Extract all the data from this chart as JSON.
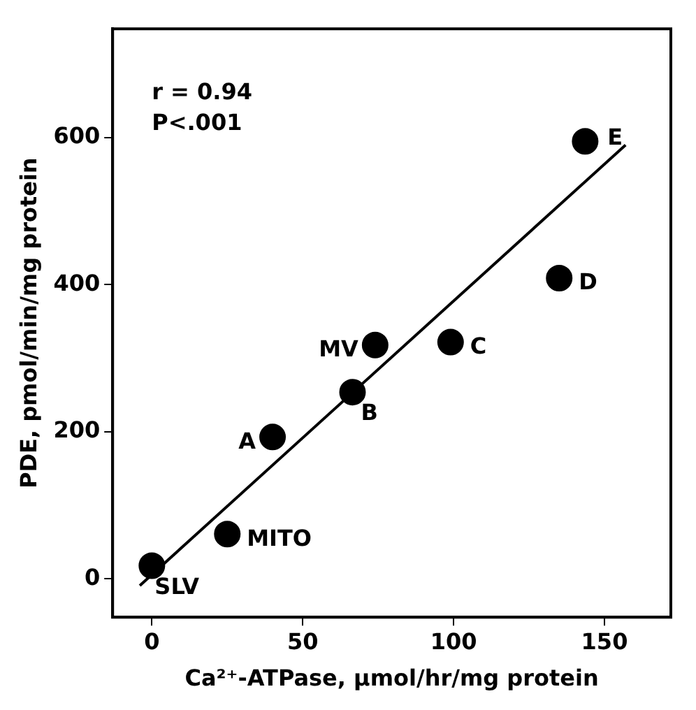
{
  "chart_data": {
    "type": "scatter",
    "xlabel": "Ca²⁺-ATPase, µmol/hr/mg protein",
    "ylabel": "PDE, pmol/min/mg protein",
    "xlim": [
      -13,
      172
    ],
    "ylim": [
      -52,
      748
    ],
    "xticks": [
      0,
      50,
      100,
      150
    ],
    "yticks": [
      0,
      200,
      400,
      600
    ],
    "series": [
      {
        "marker": "circle",
        "color": "#000000",
        "x": [
          0,
          25,
          40,
          66.5,
          74,
          99,
          135,
          143.6
        ],
        "values": [
          18,
          61,
          193,
          254,
          318,
          322,
          409,
          595
        ]
      },
      {
        "type": "line",
        "marker": "none",
        "color": "#000000",
        "x": [
          -4,
          157
        ],
        "values": [
          -9,
          590
        ]
      }
    ],
    "annotations": [
      "r = 0.94",
      "P<.001",
      {
        "text": "SLV",
        "x": 0,
        "y": 18
      },
      {
        "text": "MITO",
        "x": 25,
        "y": 61
      },
      {
        "text": "A",
        "x": 40,
        "y": 193
      },
      {
        "text": "B",
        "x": 66.5,
        "y": 254
      },
      {
        "text": "MV",
        "x": 74,
        "y": 318
      },
      {
        "text": "C",
        "x": 99,
        "y": 322
      },
      {
        "text": "D",
        "x": 135,
        "y": 409
      },
      {
        "text": "E",
        "x": 143.6,
        "y": 595
      }
    ]
  }
}
